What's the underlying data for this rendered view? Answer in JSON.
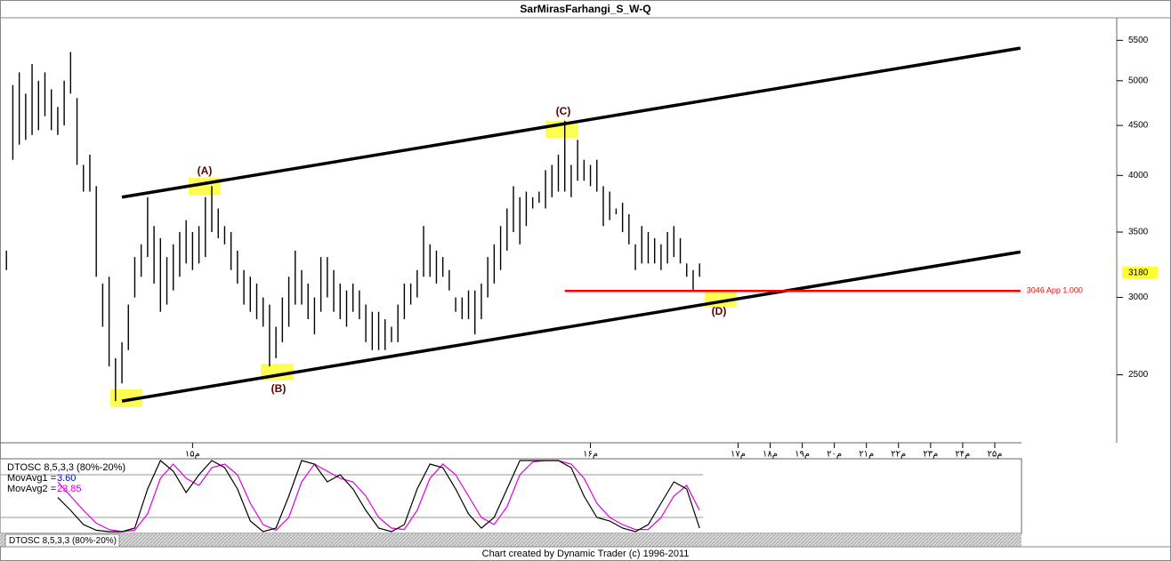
{
  "chart_data": {
    "type": "ohlc",
    "title": "SarMirasFarhangi_S_W-Q",
    "log_scale": true,
    "color": "#000000",
    "ylim": [
      2130,
      5800
    ],
    "yticks": [
      2500,
      3000,
      3500,
      4000,
      4500,
      5000,
      5500
    ],
    "xlim": [
      -1,
      173
    ],
    "xticks": [
      {
        "value": 29,
        "label": "۱۵م"
      },
      {
        "value": 91,
        "label": "۱۶م"
      },
      {
        "value": 114,
        "label": "۱۷م"
      },
      {
        "value": 119,
        "label": "۱۸م"
      },
      {
        "value": 124,
        "label": "۱۹م"
      },
      {
        "value": 129,
        "label": "۲۰م"
      },
      {
        "value": 134,
        "label": "۲۱م"
      },
      {
        "value": 139,
        "label": "۲۲م"
      },
      {
        "value": 144,
        "label": "۲۳م"
      },
      {
        "value": 149,
        "label": "۲۴م"
      },
      {
        "value": 154,
        "label": "۲۵م"
      }
    ],
    "high": [
      3350,
      4950,
      5100,
      4850,
      5200,
      5000,
      5100,
      4900,
      4700,
      5000,
      5350,
      4800,
      4100,
      4200,
      3900,
      3100,
      3150,
      2600,
      2700,
      2950,
      3300,
      3400,
      3800,
      3550,
      3450,
      3300,
      3400,
      3500,
      3600,
      3500,
      3550,
      3800,
      3900,
      3700,
      3550,
      3500,
      3350,
      3200,
      3150,
      3100,
      3000,
      2950,
      2800,
      3000,
      3150,
      3350,
      3200,
      3100,
      3000,
      3300,
      3300,
      3200,
      3100,
      3050,
      3100,
      3050,
      2950,
      2900,
      2900,
      2850,
      2800,
      2950,
      3100,
      3100,
      3200,
      3550,
      3400,
      3350,
      3300,
      3200,
      3000,
      3000,
      3050,
      3050,
      3100,
      3300,
      3400,
      3550,
      3700,
      3900,
      3800,
      3850,
      3800,
      3850,
      4050,
      4100,
      4200,
      4550,
      4100,
      4350,
      4150,
      4100,
      4150,
      3900,
      3850,
      3700,
      3750,
      3650,
      3400,
      3550,
      3500,
      3450,
      3400,
      3500,
      3550,
      3450,
      3250,
      3200,
      3250
    ],
    "low": [
      3200,
      4150,
      4300,
      4350,
      4400,
      4450,
      4600,
      4450,
      4400,
      4500,
      4850,
      4100,
      3850,
      3850,
      3150,
      2800,
      2550,
      2350,
      2450,
      2650,
      3000,
      3150,
      3300,
      3100,
      2900,
      2950,
      3050,
      3150,
      3250,
      3200,
      3250,
      3300,
      3500,
      3450,
      3400,
      3200,
      3100,
      2950,
      2900,
      2850,
      2800,
      2550,
      2600,
      2700,
      2800,
      2950,
      2950,
      2850,
      2750,
      2900,
      3000,
      2900,
      2850,
      2800,
      2900,
      2850,
      2700,
      2650,
      2650,
      2650,
      2700,
      2700,
      2850,
      2950,
      3000,
      3150,
      3150,
      3100,
      3150,
      3050,
      2900,
      2850,
      2850,
      2750,
      2850,
      3000,
      3100,
      3200,
      3350,
      3500,
      3400,
      3550,
      3700,
      3750,
      3700,
      3800,
      3850,
      3850,
      3800,
      3950,
      3950,
      3900,
      3850,
      3550,
      3600,
      3650,
      3500,
      3400,
      3200,
      3250,
      3250,
      3250,
      3200,
      3250,
      3300,
      3250,
      3150,
      3050,
      3150
    ],
    "trendlines": [
      {
        "x": [
          18,
          158
        ],
        "y": [
          3800,
          5400
        ]
      },
      {
        "x": [
          18,
          158
        ],
        "y": [
          2350,
          3340
        ]
      }
    ],
    "level": {
      "value": 3046,
      "label": "3046 App 1.000",
      "x": [
        87,
        158
      ],
      "color": "#ff0000"
    },
    "last": 3180,
    "annotations": [
      "(A)",
      "(B)",
      "(C)",
      "(D)"
    ],
    "indicator": {
      "name": "DTOSC 8,5,3,3 (80%-20%)",
      "ylim": [
        0,
        100
      ],
      "levels": [
        20,
        80
      ],
      "x": [
        8,
        10,
        12,
        14,
        16,
        18,
        20,
        22,
        24,
        26,
        28,
        30,
        32,
        34,
        36,
        38,
        40,
        42,
        44,
        46,
        48,
        50,
        52,
        54,
        56,
        58,
        60,
        62,
        64,
        66,
        68,
        70,
        72,
        74,
        76,
        78,
        80,
        82,
        84,
        86,
        88,
        90,
        92,
        94,
        96,
        98,
        100,
        102,
        104,
        106,
        108
      ],
      "series": [
        {
          "name": "MovAvg1 =",
          "value": 3.6,
          "value_label": "3.60",
          "color": "#000000",
          "label_color": "#0000cc",
          "values": [
            48,
            30,
            10,
            2,
            0,
            0,
            5,
            60,
            100,
            85,
            55,
            80,
            100,
            90,
            60,
            15,
            0,
            5,
            50,
            100,
            95,
            70,
            80,
            60,
            30,
            5,
            0,
            10,
            60,
            95,
            90,
            60,
            25,
            5,
            20,
            60,
            100,
            100,
            100,
            100,
            90,
            50,
            20,
            15,
            5,
            0,
            10,
            40,
            70,
            60,
            5
          ]
        },
        {
          "name": "MovAvg2 =",
          "value": 23.85,
          "color": "#e000e0",
          "label_color": "#e000e0",
          "values": [
            70,
            50,
            30,
            12,
            3,
            0,
            2,
            25,
            75,
            95,
            75,
            65,
            90,
            95,
            80,
            40,
            10,
            2,
            20,
            70,
            95,
            85,
            75,
            70,
            50,
            20,
            5,
            3,
            30,
            75,
            95,
            80,
            50,
            20,
            10,
            35,
            80,
            98,
            100,
            100,
            95,
            75,
            40,
            20,
            10,
            3,
            3,
            20,
            50,
            65,
            30
          ]
        }
      ]
    },
    "footer": "Chart created by Dynamic Trader  (c) 1996-2011"
  }
}
